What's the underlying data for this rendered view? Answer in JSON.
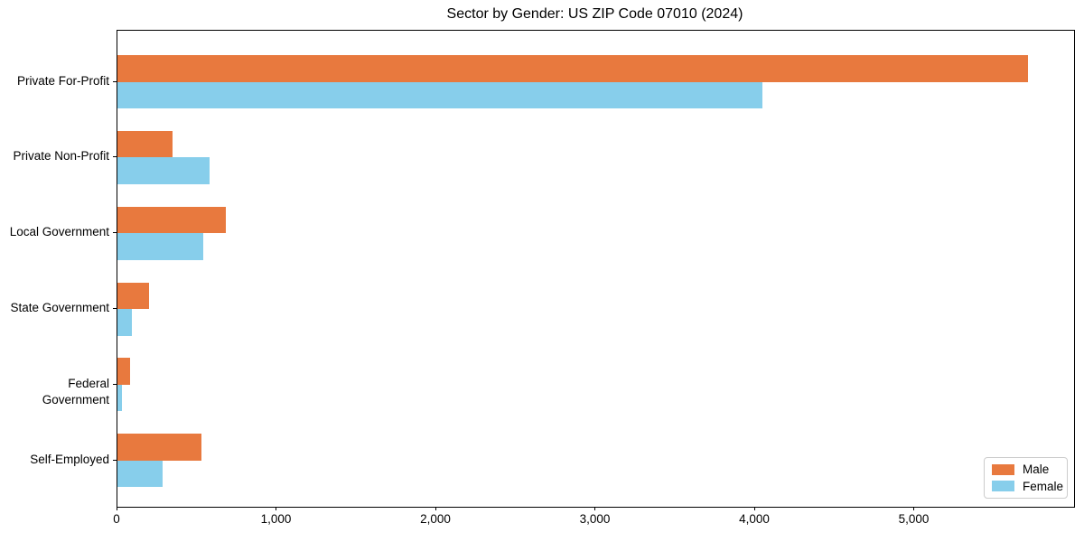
{
  "chart_data": {
    "type": "bar",
    "orientation": "horizontal",
    "title": "Sector by Gender: US ZIP Code 07010 (2024)",
    "categories": [
      "Private For-Profit",
      "Private Non-Profit",
      "Local Government",
      "State Government",
      "Federal Government",
      "Self-Employed"
    ],
    "series": [
      {
        "name": "Male",
        "color": "#e8793e",
        "values": [
          5710,
          345,
          680,
          197,
          82,
          527
        ]
      },
      {
        "name": "Female",
        "color": "#87ceeb",
        "values": [
          4045,
          576,
          538,
          88,
          28,
          283
        ]
      }
    ],
    "xlabel": "",
    "ylabel": "",
    "xlim": [
      0,
      6000
    ],
    "xticks": [
      0,
      1000,
      2000,
      3000,
      4000,
      5000
    ],
    "xtick_labels": [
      "0",
      "1,000",
      "2,000",
      "3,000",
      "4,000",
      "5,000"
    ],
    "grid": false,
    "legend_position": "lower right",
    "colors": {
      "background": "#ffffff",
      "axis": "#000000",
      "text": "#000000",
      "legend_border": "#cccccc"
    }
  }
}
